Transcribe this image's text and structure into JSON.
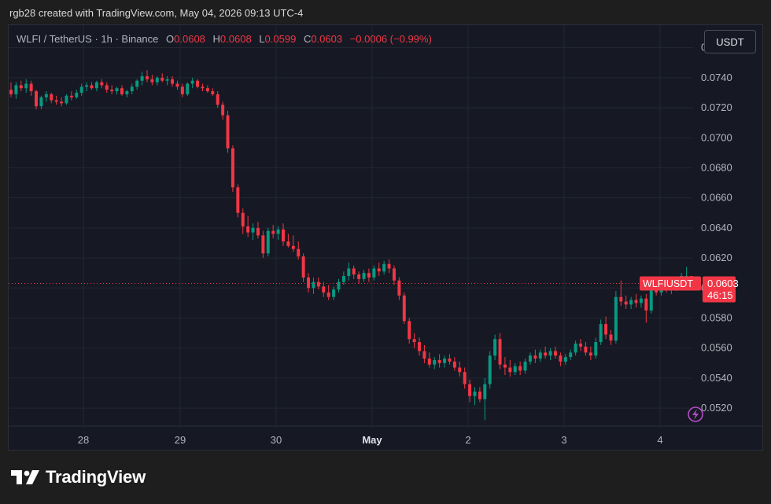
{
  "header": {
    "attribution": "rgb28 created with TradingView.com, May 04, 2026 09:13 UTC-4"
  },
  "legend": {
    "symbol_info": "WLFI / TetherUS · 1h · Binance",
    "open_label": "O",
    "open": "0.0608",
    "high_label": "H",
    "high": "0.0608",
    "low_label": "L",
    "low": "0.0599",
    "close_label": "C",
    "close": "0.0603",
    "change": "−0.0006 (−0.99%)"
  },
  "currency_button": "USDT",
  "price_tag": {
    "symbol": "WLFIUSDT",
    "price": "0.0603",
    "countdown": "46:15"
  },
  "footer": {
    "brand": "TradingView"
  },
  "colors": {
    "up": "#089981",
    "down": "#f23645",
    "grid": "#232732",
    "axis_text": "#b2b5be"
  },
  "chart_data": {
    "type": "candlestick",
    "symbol": "WLFIUSDT",
    "interval": "1h",
    "ylim": [
      0.0508,
      0.0775
    ],
    "y_ticks": [
      "0.0520",
      "0.0540",
      "0.0560",
      "0.0580",
      "0.0600",
      "0.0620",
      "0.0640",
      "0.0660",
      "0.0680",
      "0.0700",
      "0.0720",
      "0.0740",
      "0.0760"
    ],
    "x_ticks": [
      "28",
      "29",
      "30",
      "May",
      "2",
      "3",
      "4"
    ],
    "last_price": 0.0603,
    "grid": true,
    "candles_note_ohlc": "each row: [open, high, low, close]",
    "ohlc": [
      [
        0.0732,
        0.0737,
        0.0727,
        0.0729
      ],
      [
        0.0729,
        0.0737,
        0.0726,
        0.0735
      ],
      [
        0.0735,
        0.0738,
        0.0731,
        0.0733
      ],
      [
        0.0733,
        0.0739,
        0.073,
        0.0736
      ],
      [
        0.0736,
        0.0738,
        0.0728,
        0.0731
      ],
      [
        0.0731,
        0.0732,
        0.0719,
        0.0721
      ],
      [
        0.0721,
        0.0728,
        0.0719,
        0.0727
      ],
      [
        0.0727,
        0.0731,
        0.0724,
        0.0729
      ],
      [
        0.0729,
        0.073,
        0.0723,
        0.0725
      ],
      [
        0.0725,
        0.0728,
        0.0722,
        0.0724
      ],
      [
        0.0724,
        0.0727,
        0.0721,
        0.0723
      ],
      [
        0.0723,
        0.0729,
        0.0722,
        0.0728
      ],
      [
        0.0728,
        0.0731,
        0.0725,
        0.0727
      ],
      [
        0.0727,
        0.0732,
        0.0726,
        0.073
      ],
      [
        0.073,
        0.0736,
        0.0728,
        0.0734
      ],
      [
        0.0734,
        0.0737,
        0.0731,
        0.0735
      ],
      [
        0.0735,
        0.0737,
        0.0732,
        0.0733
      ],
      [
        0.0733,
        0.0738,
        0.0731,
        0.0737
      ],
      [
        0.0737,
        0.0739,
        0.0733,
        0.0735
      ],
      [
        0.0735,
        0.0737,
        0.073,
        0.0732
      ],
      [
        0.0732,
        0.0735,
        0.0729,
        0.0731
      ],
      [
        0.0731,
        0.0734,
        0.0729,
        0.0733
      ],
      [
        0.0733,
        0.0735,
        0.0728,
        0.0729
      ],
      [
        0.0729,
        0.0732,
        0.0727,
        0.0731
      ],
      [
        0.0731,
        0.0736,
        0.0729,
        0.0734
      ],
      [
        0.0734,
        0.0739,
        0.0732,
        0.0738
      ],
      [
        0.0738,
        0.0744,
        0.0735,
        0.0741
      ],
      [
        0.0741,
        0.0745,
        0.0737,
        0.0739
      ],
      [
        0.0739,
        0.0742,
        0.0735,
        0.0737
      ],
      [
        0.0737,
        0.0741,
        0.0735,
        0.074
      ],
      [
        0.074,
        0.0743,
        0.0737,
        0.0738
      ],
      [
        0.0738,
        0.0741,
        0.0735,
        0.0739
      ],
      [
        0.0739,
        0.0741,
        0.0734,
        0.0736
      ],
      [
        0.0736,
        0.0738,
        0.0732,
        0.0734
      ],
      [
        0.0734,
        0.0736,
        0.0727,
        0.0729
      ],
      [
        0.0729,
        0.0737,
        0.0728,
        0.0736
      ],
      [
        0.0736,
        0.074,
        0.0733,
        0.0738
      ],
      [
        0.0738,
        0.0739,
        0.0733,
        0.0734
      ],
      [
        0.0734,
        0.0736,
        0.0731,
        0.0733
      ],
      [
        0.0733,
        0.0735,
        0.073,
        0.0731
      ],
      [
        0.0731,
        0.0733,
        0.0728,
        0.0729
      ],
      [
        0.0729,
        0.0731,
        0.072,
        0.0722
      ],
      [
        0.0722,
        0.0724,
        0.0712,
        0.0715
      ],
      [
        0.0715,
        0.0718,
        0.069,
        0.0693
      ],
      [
        0.0693,
        0.0695,
        0.0664,
        0.0667
      ],
      [
        0.0667,
        0.0669,
        0.0647,
        0.065
      ],
      [
        0.065,
        0.0653,
        0.0636,
        0.0641
      ],
      [
        0.0641,
        0.0648,
        0.0634,
        0.0637
      ],
      [
        0.0637,
        0.0643,
        0.0632,
        0.064
      ],
      [
        0.064,
        0.0644,
        0.0633,
        0.0635
      ],
      [
        0.0635,
        0.0638,
        0.062,
        0.0623
      ],
      [
        0.0623,
        0.064,
        0.0621,
        0.0638
      ],
      [
        0.0638,
        0.0642,
        0.0633,
        0.0636
      ],
      [
        0.0636,
        0.0641,
        0.0632,
        0.0639
      ],
      [
        0.0639,
        0.0643,
        0.0628,
        0.0631
      ],
      [
        0.0631,
        0.0636,
        0.0627,
        0.0628
      ],
      [
        0.0628,
        0.0635,
        0.0624,
        0.0626
      ],
      [
        0.0626,
        0.0631,
        0.0619,
        0.0621
      ],
      [
        0.0621,
        0.0623,
        0.0604,
        0.0607
      ],
      [
        0.0607,
        0.061,
        0.0597,
        0.06
      ],
      [
        0.06,
        0.0607,
        0.0596,
        0.0604
      ],
      [
        0.0604,
        0.0607,
        0.0599,
        0.0601
      ],
      [
        0.0601,
        0.0604,
        0.0594,
        0.0597
      ],
      [
        0.0597,
        0.0602,
        0.0592,
        0.0594
      ],
      [
        0.0594,
        0.0601,
        0.0592,
        0.0599
      ],
      [
        0.0599,
        0.0606,
        0.0597,
        0.0604
      ],
      [
        0.0604,
        0.0611,
        0.0602,
        0.0608
      ],
      [
        0.0608,
        0.0617,
        0.0605,
        0.0613
      ],
      [
        0.0613,
        0.0615,
        0.0606,
        0.0609
      ],
      [
        0.0609,
        0.0611,
        0.0603,
        0.0606
      ],
      [
        0.0606,
        0.0612,
        0.0604,
        0.061
      ],
      [
        0.061,
        0.0613,
        0.0604,
        0.0607
      ],
      [
        0.0607,
        0.0615,
        0.0605,
        0.0613
      ],
      [
        0.0613,
        0.0617,
        0.0608,
        0.0611
      ],
      [
        0.0611,
        0.0618,
        0.0609,
        0.0616
      ],
      [
        0.0616,
        0.0619,
        0.061,
        0.0613
      ],
      [
        0.0613,
        0.0615,
        0.0602,
        0.0605
      ],
      [
        0.0605,
        0.0607,
        0.0592,
        0.0595
      ],
      [
        0.0595,
        0.0597,
        0.0576,
        0.0578
      ],
      [
        0.0578,
        0.058,
        0.0563,
        0.0566
      ],
      [
        0.0566,
        0.057,
        0.056,
        0.0564
      ],
      [
        0.0564,
        0.0567,
        0.0555,
        0.0558
      ],
      [
        0.0558,
        0.0562,
        0.055,
        0.0553
      ],
      [
        0.0553,
        0.0557,
        0.0547,
        0.0549
      ],
      [
        0.0549,
        0.0554,
        0.0546,
        0.0552
      ],
      [
        0.0552,
        0.0556,
        0.0547,
        0.055
      ],
      [
        0.055,
        0.0555,
        0.0547,
        0.0553
      ],
      [
        0.0553,
        0.0556,
        0.0549,
        0.0551
      ],
      [
        0.0551,
        0.0554,
        0.0545,
        0.0547
      ],
      [
        0.0547,
        0.0551,
        0.0541,
        0.0544
      ],
      [
        0.0544,
        0.0547,
        0.0533,
        0.0536
      ],
      [
        0.0536,
        0.0539,
        0.0524,
        0.0528
      ],
      [
        0.0528,
        0.0534,
        0.0522,
        0.0531
      ],
      [
        0.0531,
        0.0534,
        0.0524,
        0.0526
      ],
      [
        0.0526,
        0.054,
        0.0512,
        0.0536
      ],
      [
        0.0536,
        0.0558,
        0.0533,
        0.0555
      ],
      [
        0.0555,
        0.0569,
        0.0552,
        0.0566
      ],
      [
        0.0566,
        0.057,
        0.0546,
        0.0549
      ],
      [
        0.0549,
        0.0554,
        0.0542,
        0.0547
      ],
      [
        0.0547,
        0.0552,
        0.0541,
        0.0544
      ],
      [
        0.0544,
        0.055,
        0.0542,
        0.0548
      ],
      [
        0.0548,
        0.0551,
        0.0542,
        0.0545
      ],
      [
        0.0545,
        0.0553,
        0.0543,
        0.0551
      ],
      [
        0.0551,
        0.0557,
        0.0549,
        0.0555
      ],
      [
        0.0555,
        0.0559,
        0.055,
        0.0553
      ],
      [
        0.0553,
        0.0559,
        0.0551,
        0.0557
      ],
      [
        0.0557,
        0.0561,
        0.0553,
        0.0555
      ],
      [
        0.0555,
        0.056,
        0.0552,
        0.0558
      ],
      [
        0.0558,
        0.0561,
        0.0553,
        0.0555
      ],
      [
        0.0555,
        0.0557,
        0.0548,
        0.0551
      ],
      [
        0.0551,
        0.0556,
        0.0549,
        0.0554
      ],
      [
        0.0554,
        0.0559,
        0.0552,
        0.0557
      ],
      [
        0.0557,
        0.0565,
        0.0555,
        0.0563
      ],
      [
        0.0563,
        0.0566,
        0.0558,
        0.0561
      ],
      [
        0.0561,
        0.0564,
        0.0555,
        0.0557
      ],
      [
        0.0557,
        0.0561,
        0.0552,
        0.0555
      ],
      [
        0.0555,
        0.0567,
        0.0553,
        0.0564
      ],
      [
        0.0564,
        0.0579,
        0.0562,
        0.0576
      ],
      [
        0.0576,
        0.0581,
        0.0566,
        0.0569
      ],
      [
        0.0569,
        0.0572,
        0.0562,
        0.0565
      ],
      [
        0.0565,
        0.0598,
        0.0563,
        0.0594
      ],
      [
        0.0594,
        0.0605,
        0.0588,
        0.0591
      ],
      [
        0.0591,
        0.0595,
        0.0586,
        0.0589
      ],
      [
        0.0589,
        0.0594,
        0.0586,
        0.0592
      ],
      [
        0.0592,
        0.0596,
        0.0587,
        0.059
      ],
      [
        0.059,
        0.0595,
        0.0587,
        0.0593
      ],
      [
        0.0593,
        0.0596,
        0.0577,
        0.0585
      ],
      [
        0.0585,
        0.0601,
        0.0583,
        0.0599
      ],
      [
        0.0599,
        0.0603,
        0.0595,
        0.0597
      ],
      [
        0.0597,
        0.0604,
        0.0595,
        0.0602
      ],
      [
        0.0602,
        0.0605,
        0.0597,
        0.0599
      ],
      [
        0.0599,
        0.0604,
        0.0596,
        0.0601
      ],
      [
        0.0601,
        0.0606,
        0.0598,
        0.0604
      ],
      [
        0.0604,
        0.061,
        0.0602,
        0.0608
      ],
      [
        0.0608,
        0.0614,
        0.0606,
        0.0608
      ],
      [
        0.0608,
        0.0608,
        0.0599,
        0.0603
      ]
    ]
  }
}
